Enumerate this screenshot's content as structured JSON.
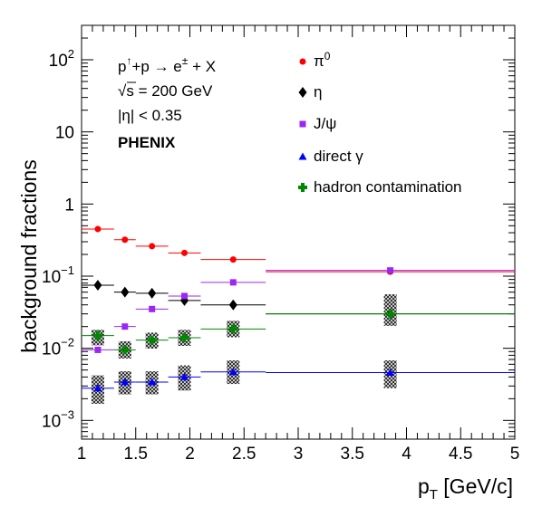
{
  "chart_data": {
    "type": "scatter",
    "xlabel_main": "p",
    "xlabel_sub": "T",
    "xlabel_rest": " [GeV/c]",
    "ylabel": "background fractions",
    "xlim": [
      1,
      5
    ],
    "ylim": [
      0.00055,
      300
    ],
    "yscale": "log",
    "x_ticks": [
      "1",
      "1.5",
      "2",
      "2.5",
      "3",
      "3.5",
      "4",
      "4.5",
      "5"
    ],
    "y_ticks": [
      {
        "base": "10",
        "exp": "2",
        "value": 100
      },
      {
        "base": "10",
        "exp": "",
        "value": 10
      },
      {
        "base": "1",
        "exp": "",
        "value": 1
      },
      {
        "base": "10",
        "exp": "−1",
        "value": 0.1
      },
      {
        "base": "10",
        "exp": "−2",
        "value": 0.01
      },
      {
        "base": "10",
        "exp": "−3",
        "value": 0.001
      }
    ],
    "annotations": {
      "reaction_part1": "p",
      "reaction_arrow_up": "↑",
      "reaction_part2": "+p → e",
      "reaction_charge": "±",
      "reaction_part3": " + X",
      "sqrt_symbol": "√",
      "energy": "s = 200 GeV",
      "eta_cut": "|η| < 0.35",
      "experiment": "PHENIX"
    },
    "grid": false,
    "legend_placement": "top-right",
    "series": [
      {
        "name": "π",
        "name_sup": "0",
        "marker": "circle",
        "color": "#ff0000",
        "points": [
          {
            "x": 1.15,
            "y": 0.45,
            "xlo": 1.0,
            "xhi": 1.3
          },
          {
            "x": 1.4,
            "y": 0.32,
            "xlo": 1.3,
            "xhi": 1.5
          },
          {
            "x": 1.65,
            "y": 0.26,
            "xlo": 1.5,
            "xhi": 1.8
          },
          {
            "x": 1.95,
            "y": 0.21,
            "xlo": 1.8,
            "xhi": 2.1
          },
          {
            "x": 2.4,
            "y": 0.17,
            "xlo": 2.1,
            "xhi": 2.7
          },
          {
            "x": 3.85,
            "y": 0.115,
            "xlo": 2.7,
            "xhi": 5.0
          }
        ]
      },
      {
        "name": "η",
        "name_sup": "",
        "marker": "diamond",
        "color": "#000000",
        "points": [
          {
            "x": 1.15,
            "y": 0.075,
            "xlo": 1.0,
            "xhi": 1.3
          },
          {
            "x": 1.4,
            "y": 0.06,
            "xlo": 1.3,
            "xhi": 1.5
          },
          {
            "x": 1.65,
            "y": 0.058,
            "xlo": 1.5,
            "xhi": 1.8
          },
          {
            "x": 1.95,
            "y": 0.046,
            "xlo": 1.8,
            "xhi": 2.1
          },
          {
            "x": 2.4,
            "y": 0.04,
            "xlo": 2.1,
            "xhi": 2.7
          },
          {
            "x": 3.85,
            "y": 0.03,
            "xlo": 2.7,
            "xhi": 5.0
          }
        ]
      },
      {
        "name": "J/ψ",
        "name_sup": "",
        "marker": "square",
        "color": "#9a27f5",
        "points": [
          {
            "x": 1.15,
            "y": 0.0095,
            "xlo": 1.0,
            "xhi": 1.3
          },
          {
            "x": 1.4,
            "y": 0.02,
            "xlo": 1.3,
            "xhi": 1.5
          },
          {
            "x": 1.65,
            "y": 0.035,
            "xlo": 1.5,
            "xhi": 1.8
          },
          {
            "x": 1.95,
            "y": 0.053,
            "xlo": 1.8,
            "xhi": 2.1
          },
          {
            "x": 2.4,
            "y": 0.082,
            "xlo": 2.1,
            "xhi": 2.7
          },
          {
            "x": 3.85,
            "y": 0.12,
            "xlo": 2.7,
            "xhi": 5.0
          }
        ]
      },
      {
        "name": "direct γ",
        "name_sup": "",
        "marker": "triangle",
        "color": "#0000ff",
        "points": [
          {
            "x": 1.15,
            "y": 0.0028,
            "xlo": 1.0,
            "xhi": 1.3,
            "elo": 0.0017,
            "ehi": 0.0042
          },
          {
            "x": 1.4,
            "y": 0.0034,
            "xlo": 1.3,
            "xhi": 1.5,
            "elo": 0.0023,
            "ehi": 0.0048
          },
          {
            "x": 1.65,
            "y": 0.0034,
            "xlo": 1.5,
            "xhi": 1.8,
            "elo": 0.0023,
            "ehi": 0.0048
          },
          {
            "x": 1.95,
            "y": 0.004,
            "xlo": 1.8,
            "xhi": 2.1,
            "elo": 0.0026,
            "ehi": 0.0058
          },
          {
            "x": 2.4,
            "y": 0.0047,
            "xlo": 2.1,
            "xhi": 2.7,
            "elo": 0.0032,
            "ehi": 0.0068
          },
          {
            "x": 3.85,
            "y": 0.0046,
            "xlo": 2.7,
            "xhi": 5.0,
            "elo": 0.0028,
            "ehi": 0.0068
          }
        ]
      },
      {
        "name": "hadron contamination",
        "name_sup": "",
        "marker": "cross",
        "color": "#008800",
        "points": [
          {
            "x": 1.15,
            "y": 0.015,
            "xlo": 1.0,
            "xhi": 1.3,
            "elo": 0.011,
            "ehi": 0.018
          },
          {
            "x": 1.4,
            "y": 0.0095,
            "xlo": 1.3,
            "xhi": 1.5,
            "elo": 0.0072,
            "ehi": 0.0125
          },
          {
            "x": 1.65,
            "y": 0.013,
            "xlo": 1.5,
            "xhi": 1.8,
            "elo": 0.0099,
            "ehi": 0.0165
          },
          {
            "x": 1.95,
            "y": 0.014,
            "xlo": 1.8,
            "xhi": 2.1,
            "elo": 0.0108,
            "ehi": 0.018
          },
          {
            "x": 2.4,
            "y": 0.0185,
            "xlo": 2.1,
            "xhi": 2.7,
            "elo": 0.0142,
            "ehi": 0.024
          },
          {
            "x": 3.85,
            "y": 0.03,
            "xlo": 2.7,
            "xhi": 5.0,
            "elo": 0.0205,
            "ehi": 0.056
          }
        ]
      }
    ]
  }
}
